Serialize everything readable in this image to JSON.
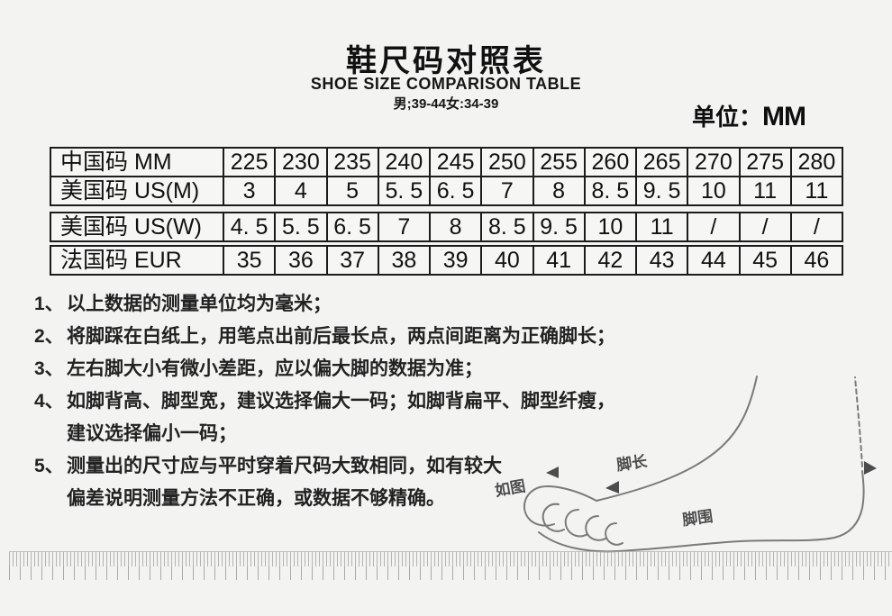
{
  "header": {
    "title": "鞋尺码对照表",
    "subtitle": "SHOE SIZE COMPARISON TABLE",
    "range_note": "男;39-44女:34-39",
    "unit_label": "单位：",
    "unit_value": "MM"
  },
  "size_table": {
    "rows": [
      {
        "label": "中国码 MM",
        "values": [
          "225",
          "230",
          "235",
          "240",
          "245",
          "250",
          "255",
          "260",
          "265",
          "270",
          "275",
          "280"
        ]
      },
      {
        "label": "美国码 US(M)",
        "values": [
          "3",
          "4",
          "5",
          "5. 5",
          "6. 5",
          "7",
          "8",
          "8. 5",
          "9. 5",
          "10",
          "11",
          "11"
        ]
      },
      {
        "label": "美国码 US(W)",
        "values": [
          "4. 5",
          "5. 5",
          "6. 5",
          "7",
          "8",
          "8. 5",
          "9. 5",
          "10",
          "11",
          "/",
          "/",
          "/"
        ]
      },
      {
        "label": "法国码 EUR",
        "values": [
          "35",
          "36",
          "37",
          "38",
          "39",
          "40",
          "41",
          "42",
          "43",
          "44",
          "45",
          "46"
        ]
      }
    ]
  },
  "notes": [
    {
      "num": "1、",
      "text": "以上数据的测量单位均为毫米；"
    },
    {
      "num": "2、",
      "text": "将脚踩在白纸上，用笔点出前后最长点，两点间距离为正确脚长；"
    },
    {
      "num": "3、",
      "text": "左右脚大小有微小差距，应以偏大脚的数据为准；"
    },
    {
      "num": "4、",
      "text": "如脚背高、脚型宽，建议选择偏大一码；如脚背扁平、脚型纤瘦，",
      "text2": "建议选择偏小一码；"
    },
    {
      "num": "5、",
      "text": "测量出的尺寸应与平时穿着尺码大致相同，如有较大",
      "text2": "偏差说明测量方法不正确，或数据不够精确。"
    }
  ],
  "illustration": {
    "as_shown_label": "如图",
    "foot_length_label": "脚长",
    "foot_girth_label": "脚围"
  },
  "colors": {
    "background": "#f3f3f1",
    "text": "#1c1c1c",
    "table_border": "#1c1c1c",
    "sketch_gray": "#7a7a7a"
  }
}
